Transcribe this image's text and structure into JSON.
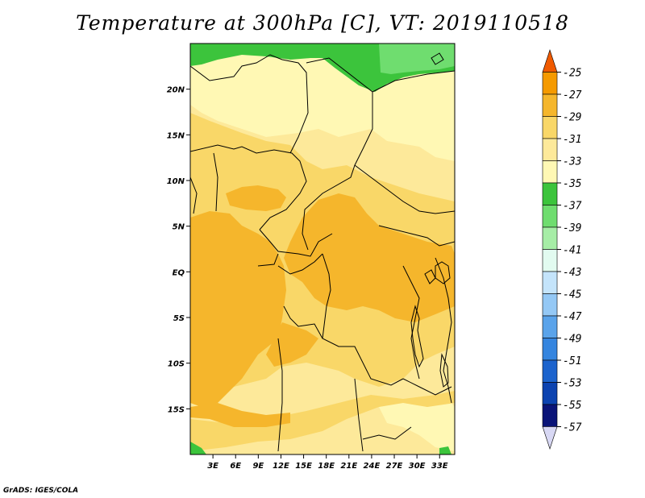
{
  "title": "Temperature at 300hPa [C], VT: 2019110518",
  "credit": "GrADS: IGES/COLA",
  "map": {
    "lon_range": [
      0,
      35
    ],
    "lat_range": [
      -20,
      25
    ],
    "lat_ticks": [
      {
        "value": 20,
        "label": "20N"
      },
      {
        "value": 15,
        "label": "15N"
      },
      {
        "value": 10,
        "label": "10N"
      },
      {
        "value": 5,
        "label": "5N"
      },
      {
        "value": 0,
        "label": "EQ"
      },
      {
        "value": -5,
        "label": "5S"
      },
      {
        "value": -10,
        "label": "10S"
      },
      {
        "value": -15,
        "label": "15S"
      }
    ],
    "lon_ticks": [
      {
        "value": 3,
        "label": "3E"
      },
      {
        "value": 6,
        "label": "6E"
      },
      {
        "value": 9,
        "label": "9E"
      },
      {
        "value": 12,
        "label": "12E"
      },
      {
        "value": 15,
        "label": "15E"
      },
      {
        "value": 18,
        "label": "18E"
      },
      {
        "value": 21,
        "label": "21E"
      },
      {
        "value": 24,
        "label": "24E"
      },
      {
        "value": 27,
        "label": "27E"
      },
      {
        "value": 30,
        "label": "30E"
      },
      {
        "value": 33,
        "label": "33E"
      }
    ]
  },
  "colorbar": {
    "labels": [
      "-25",
      "-27",
      "-29",
      "-31",
      "-33",
      "-35",
      "-37",
      "-39",
      "-41",
      "-43",
      "-45",
      "-47",
      "-49",
      "-51",
      "-53",
      "-55",
      "-57"
    ],
    "colors": [
      "#f05a00",
      "#f59a00",
      "#f5b62c",
      "#f9d768",
      "#fde99a",
      "#fff8b4",
      "#3cc43c",
      "#6fdd6f",
      "#a6eda6",
      "#e2fbf0",
      "#c4e4fb",
      "#94c8f5",
      "#5aa3ea",
      "#3585df",
      "#1c63cd",
      "#0c43b0",
      "#0a1478",
      "#d8d8f4"
    ]
  },
  "regions": [
    {
      "name": "north-green-band",
      "color": "#3cc43c"
    },
    {
      "name": "northeast-light-green",
      "color": "#6fdd6f"
    },
    {
      "name": "pale-yellow-zone",
      "color": "#fff8b4"
    },
    {
      "name": "light-yellow-zone",
      "color": "#fde99a"
    },
    {
      "name": "yellow-zone",
      "color": "#f9d768"
    },
    {
      "name": "orange-zone",
      "color": "#f5b62c"
    }
  ]
}
